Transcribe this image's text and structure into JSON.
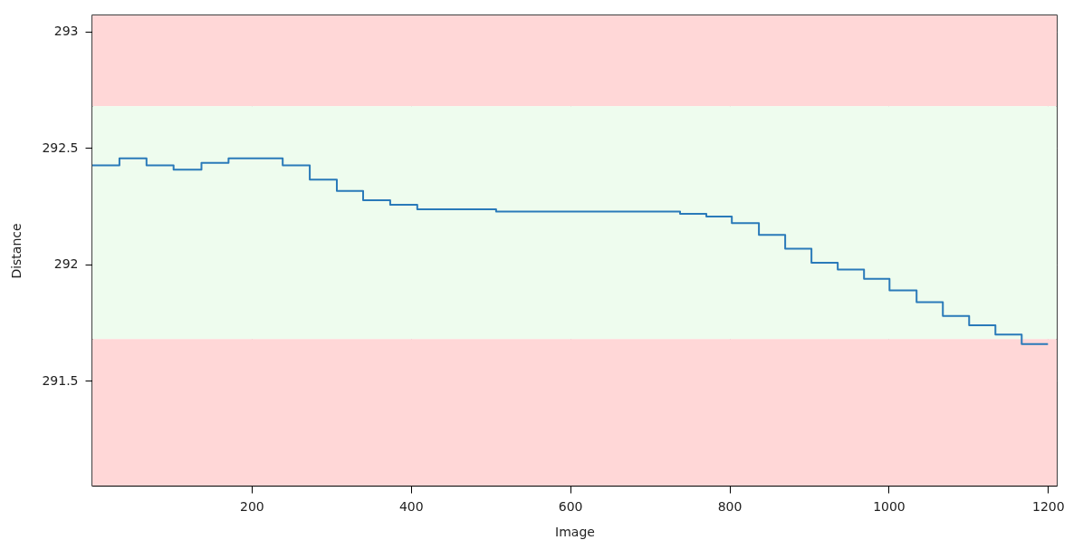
{
  "chart_data": {
    "type": "step",
    "xlabel": "Image",
    "ylabel": "Distance",
    "xlim": [
      0,
      1211
    ],
    "ylim": [
      291.05,
      293.07
    ],
    "xticks": [
      200,
      400,
      600,
      800,
      1000,
      1200
    ],
    "yticks": [
      291.5,
      292,
      292.5,
      293
    ],
    "grid": true,
    "bands": [
      {
        "axis": "y",
        "from": 292.68,
        "to": 293.07,
        "color": "#ffd7d7"
      },
      {
        "axis": "y",
        "from": 291.68,
        "to": 292.68,
        "color": "#eefcee"
      },
      {
        "axis": "y",
        "from": 291.05,
        "to": 291.68,
        "color": "#ffd7d7"
      }
    ],
    "series": [
      {
        "color": "#2a7ab9",
        "x": [
          0,
          34,
          68,
          102,
          137,
          171,
          239,
          273,
          307,
          340,
          374,
          408,
          507,
          738,
          771,
          803,
          837,
          870,
          903,
          936,
          969,
          1001,
          1035,
          1068,
          1101,
          1134,
          1167,
          1200
        ],
        "values": [
          292.426,
          292.456,
          292.426,
          292.407,
          292.437,
          292.456,
          292.426,
          292.365,
          292.316,
          292.276,
          292.257,
          292.237,
          292.227,
          292.218,
          292.206,
          292.178,
          292.127,
          292.068,
          292.007,
          291.978,
          291.938,
          291.889,
          291.838,
          291.779,
          291.739,
          291.699,
          291.658,
          291.658
        ]
      }
    ]
  }
}
